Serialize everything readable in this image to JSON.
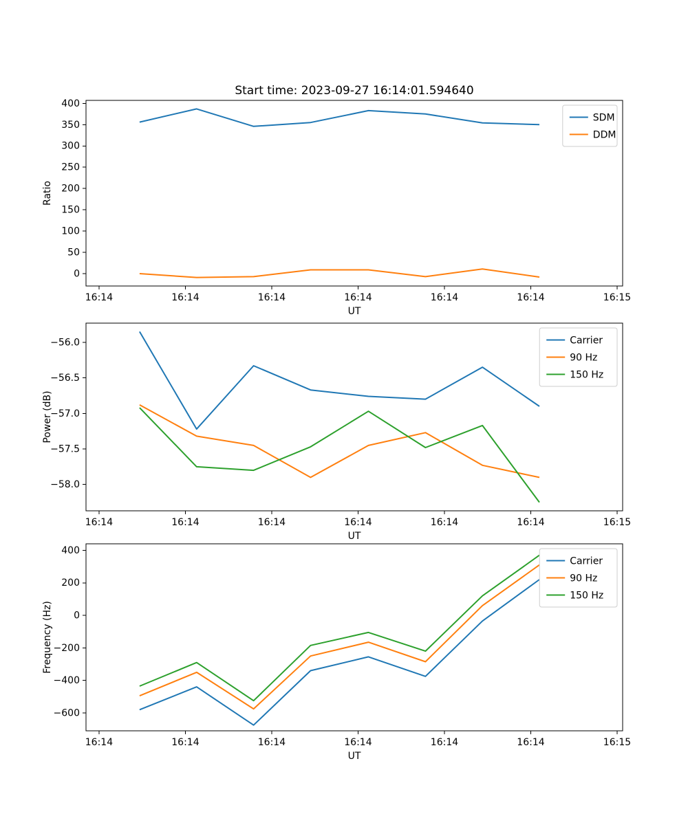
{
  "figure": {
    "title": "Start time: 2023-09-27 16:14:01.594640"
  },
  "colors": {
    "blue": "#1f77b4",
    "orange": "#ff7f0e",
    "green": "#2ca02c",
    "legend_border": "#cccccc",
    "axis": "#000000"
  },
  "chart_data": [
    {
      "type": "line",
      "title": "Start time: 2023-09-27 16:14:01.594640",
      "xlabel": "UT",
      "ylabel": "Ratio",
      "legend_position": "upper right",
      "grid": false,
      "x_seconds": [
        4.7,
        11.3,
        17.9,
        24.5,
        31.2,
        37.8,
        44.4,
        51.0
      ],
      "xlim_seconds": [
        -1.51,
        60.64
      ],
      "xticks": {
        "values": [
          0,
          10,
          20,
          30,
          40,
          50,
          60
        ],
        "labels": [
          "16:14",
          "16:14",
          "16:14",
          "16:14",
          "16:14",
          "16:14",
          "16:15"
        ]
      },
      "ylim": [
        -29,
        407
      ],
      "yticks": {
        "values": [
          0,
          50,
          100,
          150,
          200,
          250,
          300,
          350,
          400
        ],
        "labels": [
          "0",
          "50",
          "100",
          "150",
          "200",
          "250",
          "300",
          "350",
          "400"
        ]
      },
      "series": [
        {
          "name": "SDM",
          "color": "#1f77b4",
          "values": [
            356,
            387,
            346,
            355,
            383,
            375,
            354,
            350
          ]
        },
        {
          "name": "DDM",
          "color": "#ff7f0e",
          "values": [
            0,
            -9,
            -7,
            9,
            9,
            -7,
            11,
            -8
          ]
        }
      ]
    },
    {
      "type": "line",
      "xlabel": "UT",
      "ylabel": "Power (dB)",
      "legend_position": "upper right",
      "grid": false,
      "x_seconds": [
        4.7,
        11.3,
        17.9,
        24.5,
        31.2,
        37.8,
        44.4,
        51.0
      ],
      "xlim_seconds": [
        -1.51,
        60.64
      ],
      "xticks": {
        "values": [
          0,
          10,
          20,
          30,
          40,
          50,
          60
        ],
        "labels": [
          "16:14",
          "16:14",
          "16:14",
          "16:14",
          "16:14",
          "16:14",
          "16:15"
        ]
      },
      "ylim": [
        -58.37,
        -55.73
      ],
      "yticks": {
        "values": [
          -56.0,
          -56.5,
          -57.0,
          -57.5,
          -58.0
        ],
        "labels": [
          "−56.0",
          "−56.5",
          "−57.0",
          "−57.5",
          "−58.0"
        ]
      },
      "series": [
        {
          "name": "Carrier",
          "color": "#1f77b4",
          "values": [
            -55.85,
            -57.22,
            -56.33,
            -56.67,
            -56.76,
            -56.8,
            -56.35,
            -56.9
          ]
        },
        {
          "name": "90 Hz",
          "color": "#ff7f0e",
          "values": [
            -56.88,
            -57.32,
            -57.45,
            -57.9,
            -57.45,
            -57.27,
            -57.73,
            -57.9
          ]
        },
        {
          "name": "150 Hz",
          "color": "#2ca02c",
          "values": [
            -56.92,
            -57.75,
            -57.8,
            -57.47,
            -56.97,
            -57.48,
            -57.17,
            -58.25
          ]
        }
      ]
    },
    {
      "type": "line",
      "xlabel": "UT",
      "ylabel": "Frequency (Hz)",
      "legend_position": "upper right",
      "grid": false,
      "x_seconds": [
        4.7,
        11.3,
        17.9,
        24.5,
        31.2,
        37.8,
        44.4,
        51.0
      ],
      "xlim_seconds": [
        -1.51,
        60.64
      ],
      "xticks": {
        "values": [
          0,
          10,
          20,
          30,
          40,
          50,
          60
        ],
        "labels": [
          "16:14",
          "16:14",
          "16:14",
          "16:14",
          "16:14",
          "16:14",
          "16:15"
        ]
      },
      "ylim": [
        -710,
        440
      ],
      "yticks": {
        "values": [
          400,
          200,
          0,
          -200,
          -400,
          -600
        ],
        "labels": [
          "400",
          "200",
          "0",
          "−200",
          "−400",
          "−600"
        ]
      },
      "series": [
        {
          "name": "Carrier",
          "color": "#1f77b4",
          "values": [
            -580,
            -440,
            -675,
            -340,
            -255,
            -375,
            -35,
            220
          ]
        },
        {
          "name": "90 Hz",
          "color": "#ff7f0e",
          "values": [
            -495,
            -350,
            -575,
            -250,
            -165,
            -285,
            60,
            310
          ]
        },
        {
          "name": "150 Hz",
          "color": "#2ca02c",
          "values": [
            -435,
            -290,
            -525,
            -185,
            -105,
            -220,
            120,
            370
          ]
        }
      ]
    }
  ]
}
